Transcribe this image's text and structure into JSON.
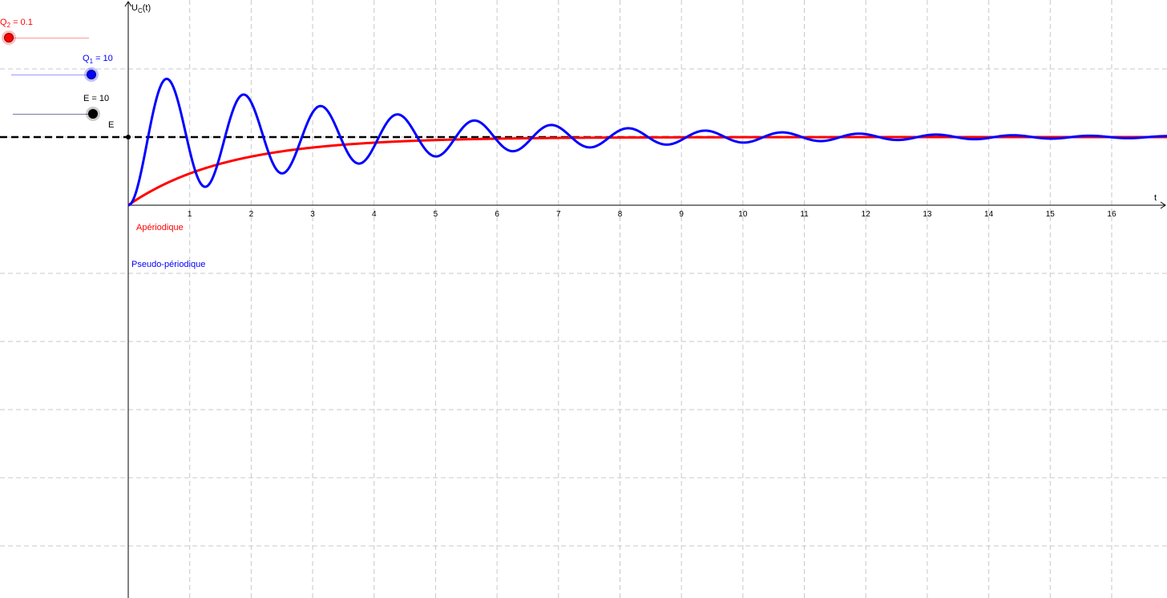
{
  "sliders": {
    "q2": {
      "sym": "Q",
      "sub": "2",
      "rest": " = 0.1",
      "value": 0.1,
      "min": 0,
      "max": 10,
      "color": "#ff0000"
    },
    "q1": {
      "sym": "Q",
      "sub": "1",
      "rest": " = 10",
      "value": 10,
      "min": 0,
      "max": 10,
      "color": "#0000ff"
    },
    "e": {
      "text": "E = 10",
      "value": 10,
      "min": 0,
      "max": 10,
      "color": "#000000"
    }
  },
  "labels": {
    "aperiodique": "Apériodique",
    "pseudo": "Pseudo-périodique",
    "e_point": "E"
  },
  "chart_data": {
    "type": "line",
    "x_axis_label": "t",
    "y_axis_label": {
      "main": "U",
      "sub": "C",
      "rest": "(t)"
    },
    "xlim": [
      0,
      16.9
    ],
    "ylim": [
      -28.5,
      15.4
    ],
    "x_ticks": [
      1,
      2,
      3,
      4,
      5,
      6,
      7,
      8,
      9,
      10,
      11,
      12,
      13,
      14,
      15,
      16
    ],
    "grid": true,
    "asymptote": {
      "y": 10,
      "style": "dashed",
      "color": "#000000"
    },
    "series": [
      {
        "name": "Apériodique",
        "color": "#ff0000",
        "model": "first-order",
        "tau": 1.6,
        "E": 10
      },
      {
        "name": "Pseudo-périodique",
        "color": "#0000ff",
        "model": "second-order-underdamped",
        "Q": 10,
        "E": 10,
        "f0": 0.8
      }
    ]
  }
}
